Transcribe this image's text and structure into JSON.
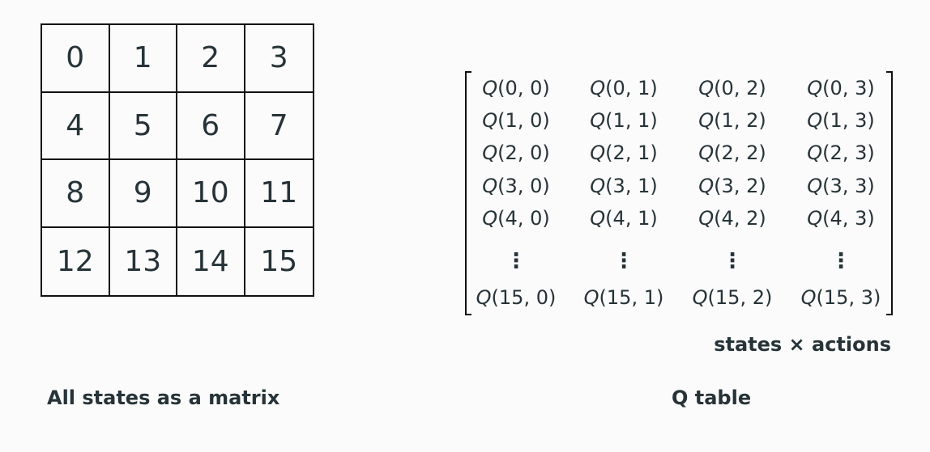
{
  "grid": {
    "states": [
      "0",
      "1",
      "2",
      "3",
      "4",
      "5",
      "6",
      "7",
      "8",
      "9",
      "10",
      "11",
      "12",
      "13",
      "14",
      "15"
    ]
  },
  "captions": {
    "left": "All states as a matrix",
    "right": "Q table",
    "axes": "states × actions"
  },
  "q_table": {
    "symbol": "Q",
    "rows": [
      [
        "Q(0, 0)",
        "Q(0, 1)",
        "Q(0, 2)",
        "Q(0, 3)"
      ],
      [
        "Q(1, 0)",
        "Q(1, 1)",
        "Q(1, 2)",
        "Q(1, 3)"
      ],
      [
        "Q(2, 0)",
        "Q(2, 1)",
        "Q(2, 2)",
        "Q(2, 3)"
      ],
      [
        "Q(3, 0)",
        "Q(3, 1)",
        "Q(3, 2)",
        "Q(3, 3)"
      ],
      [
        "Q(4, 0)",
        "Q(4, 1)",
        "Q(4, 2)",
        "Q(4, 3)"
      ],
      [
        "⋮",
        "⋮",
        "⋮",
        "⋮"
      ],
      [
        "Q(15, 0)",
        "Q(15, 1)",
        "Q(15, 2)",
        "Q(15, 3)"
      ]
    ]
  }
}
